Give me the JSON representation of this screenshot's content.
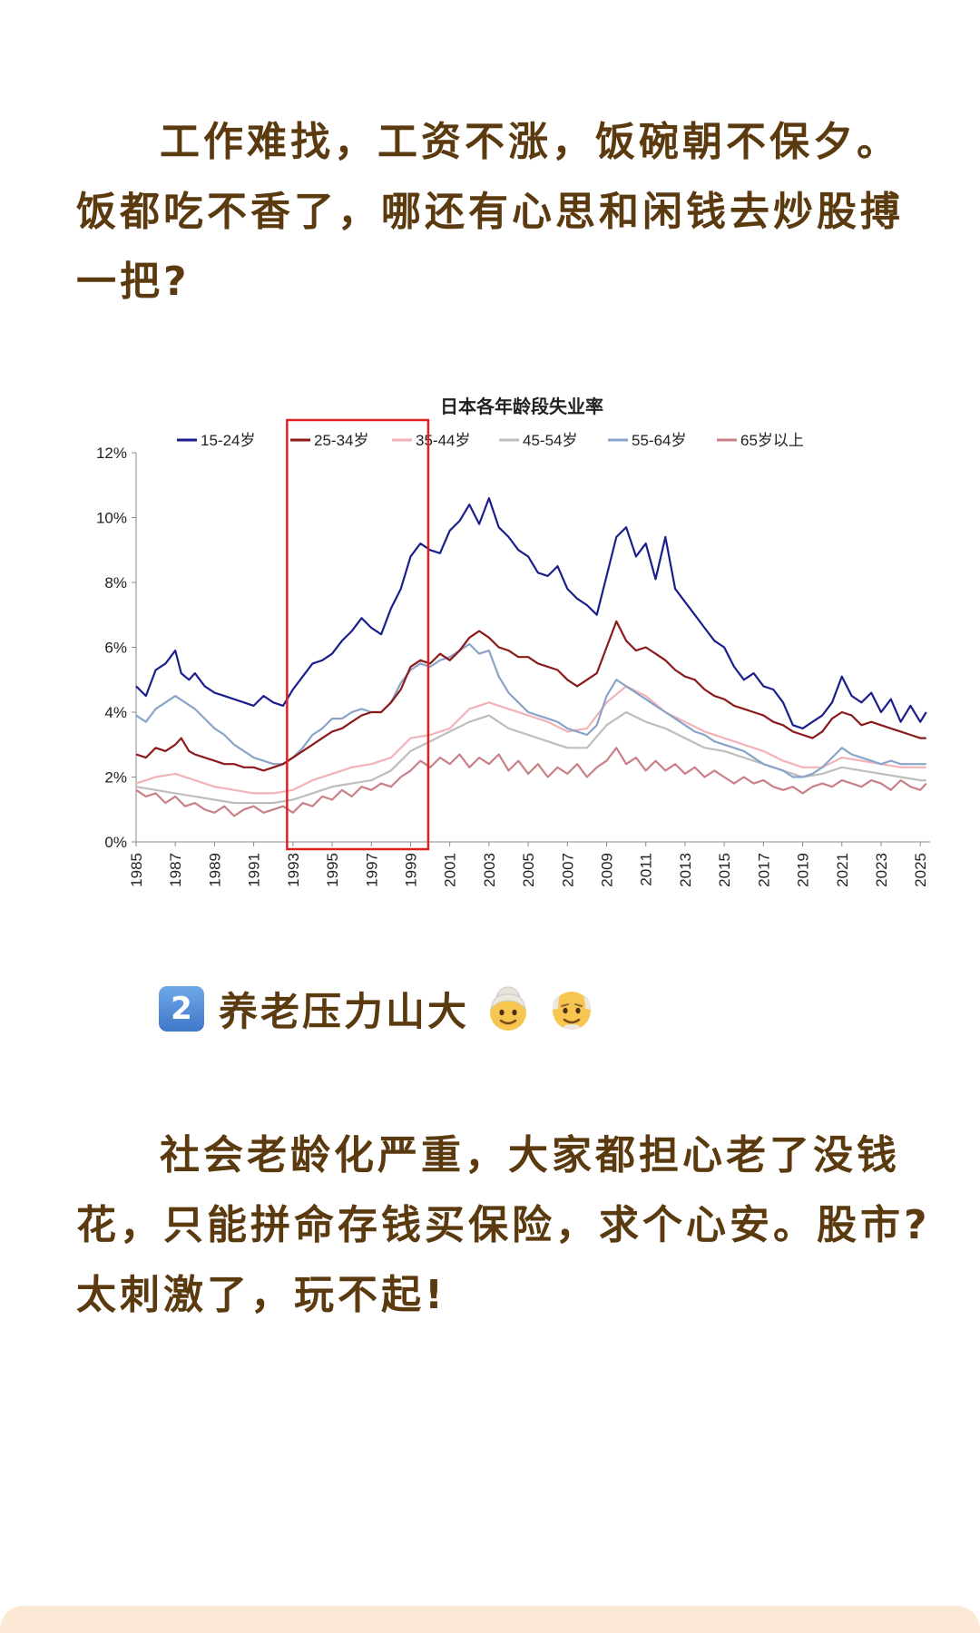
{
  "intro": {
    "paragraph": "工作难找，工资不涨，饭碗朝不保夕。饭都吃不香了，哪还有心思和闲钱去炒股搏一把?"
  },
  "chart_data": {
    "type": "line",
    "title": "日本各年龄段失业率",
    "xlabel": "",
    "ylabel": "",
    "ylim": [
      0,
      12
    ],
    "yticks": [
      "0%",
      "2%",
      "4%",
      "6%",
      "8%",
      "10%",
      "12%"
    ],
    "xticks": [
      "1985",
      "1987",
      "1989",
      "1991",
      "1993",
      "1995",
      "1997",
      "1999",
      "2001",
      "2003",
      "2005",
      "2007",
      "2009",
      "2011",
      "2013",
      "2015",
      "2017",
      "2019",
      "2021",
      "2023",
      "2025"
    ],
    "xlim": [
      1985,
      2025.5
    ],
    "legend_position": "top",
    "highlight": {
      "x_start": 1992.7,
      "x_end": 1999.9,
      "color": "#e02020"
    },
    "series": [
      {
        "name": "15-24岁",
        "color": "#1a1f8c",
        "x": [
          1985,
          1985.5,
          1986,
          1986.5,
          1987,
          1987.3,
          1987.7,
          1988,
          1988.5,
          1989,
          1989.5,
          1990,
          1990.5,
          1991,
          1991.5,
          1992,
          1992.5,
          1993,
          1993.5,
          1994,
          1994.5,
          1995,
          1995.5,
          1996,
          1996.5,
          1997,
          1997.5,
          1998,
          1998.5,
          1999,
          1999.5,
          2000,
          2000.5,
          2001,
          2001.5,
          2002,
          2002.5,
          2003,
          2003.5,
          2004,
          2004.5,
          2005,
          2005.5,
          2006,
          2006.5,
          2007,
          2007.5,
          2008,
          2008.5,
          2009,
          2009.5,
          2010,
          2010.5,
          2011,
          2011.5,
          2012,
          2012.5,
          2013,
          2013.5,
          2014,
          2014.5,
          2015,
          2015.5,
          2016,
          2016.5,
          2017,
          2017.5,
          2018,
          2018.5,
          2019,
          2019.5,
          2020,
          2020.5,
          2021,
          2021.5,
          2022,
          2022.5,
          2023,
          2023.5,
          2024,
          2024.5,
          2025,
          2025.3
        ],
        "values": [
          4.8,
          4.5,
          5.3,
          5.5,
          5.9,
          5.2,
          5.0,
          5.2,
          4.8,
          4.6,
          4.5,
          4.4,
          4.3,
          4.2,
          4.5,
          4.3,
          4.2,
          4.7,
          5.1,
          5.5,
          5.6,
          5.8,
          6.2,
          6.5,
          6.9,
          6.6,
          6.4,
          7.2,
          7.8,
          8.8,
          9.2,
          9.0,
          8.9,
          9.6,
          9.9,
          10.4,
          9.8,
          10.6,
          9.7,
          9.4,
          9.0,
          8.8,
          8.3,
          8.2,
          8.5,
          7.8,
          7.5,
          7.3,
          7.0,
          8.2,
          9.4,
          9.7,
          8.8,
          9.2,
          8.1,
          9.4,
          7.8,
          7.4,
          7.0,
          6.6,
          6.2,
          6.0,
          5.4,
          5.0,
          5.2,
          4.8,
          4.7,
          4.3,
          3.6,
          3.5,
          3.7,
          3.9,
          4.3,
          5.1,
          4.5,
          4.3,
          4.6,
          4.0,
          4.4,
          3.7,
          4.2,
          3.7,
          4.0
        ]
      },
      {
        "name": "25-34岁",
        "color": "#8b1a1a",
        "x": [
          1985,
          1985.5,
          1986,
          1986.5,
          1987,
          1987.3,
          1987.7,
          1988,
          1988.5,
          1989,
          1989.5,
          1990,
          1990.5,
          1991,
          1991.5,
          1992,
          1992.5,
          1993,
          1993.5,
          1994,
          1994.5,
          1995,
          1995.5,
          1996,
          1996.5,
          1997,
          1997.5,
          1998,
          1998.5,
          1999,
          1999.5,
          2000,
          2000.5,
          2001,
          2001.5,
          2002,
          2002.5,
          2003,
          2003.5,
          2004,
          2004.5,
          2005,
          2005.5,
          2006,
          2006.5,
          2007,
          2007.5,
          2008,
          2008.5,
          2009,
          2009.5,
          2010,
          2010.5,
          2011,
          2011.5,
          2012,
          2012.5,
          2013,
          2013.5,
          2014,
          2014.5,
          2015,
          2015.5,
          2016,
          2016.5,
          2017,
          2017.5,
          2018,
          2018.5,
          2019,
          2019.5,
          2020,
          2020.5,
          2021,
          2021.5,
          2022,
          2022.5,
          2023,
          2023.5,
          2024,
          2024.5,
          2025,
          2025.3
        ],
        "values": [
          2.7,
          2.6,
          2.9,
          2.8,
          3.0,
          3.2,
          2.8,
          2.7,
          2.6,
          2.5,
          2.4,
          2.4,
          2.3,
          2.3,
          2.2,
          2.3,
          2.4,
          2.6,
          2.8,
          3.0,
          3.2,
          3.4,
          3.5,
          3.7,
          3.9,
          4.0,
          4.0,
          4.3,
          4.7,
          5.4,
          5.6,
          5.5,
          5.8,
          5.6,
          5.9,
          6.3,
          6.5,
          6.3,
          6.0,
          5.9,
          5.7,
          5.7,
          5.5,
          5.4,
          5.3,
          5.0,
          4.8,
          5.0,
          5.2,
          6.0,
          6.8,
          6.2,
          5.9,
          6.0,
          5.8,
          5.6,
          5.3,
          5.1,
          5.0,
          4.7,
          4.5,
          4.4,
          4.2,
          4.1,
          4.0,
          3.9,
          3.7,
          3.6,
          3.4,
          3.3,
          3.2,
          3.4,
          3.8,
          4.0,
          3.9,
          3.6,
          3.7,
          3.6,
          3.5,
          3.4,
          3.3,
          3.2,
          3.2
        ]
      },
      {
        "name": "35-44岁",
        "color": "#f2b3b8",
        "x": [
          1985,
          1986,
          1987,
          1988,
          1989,
          1990,
          1991,
          1992,
          1993,
          1994,
          1995,
          1996,
          1997,
          1998,
          1999,
          2000,
          2001,
          2002,
          2003,
          2004,
          2005,
          2006,
          2007,
          2008,
          2009,
          2010,
          2011,
          2012,
          2013,
          2014,
          2015,
          2016,
          2017,
          2018,
          2019,
          2020,
          2021,
          2022,
          2023,
          2024,
          2025,
          2025.3
        ],
        "values": [
          1.8,
          2.0,
          2.1,
          1.9,
          1.7,
          1.6,
          1.5,
          1.5,
          1.6,
          1.9,
          2.1,
          2.3,
          2.4,
          2.6,
          3.2,
          3.3,
          3.5,
          4.1,
          4.3,
          4.1,
          3.9,
          3.7,
          3.4,
          3.5,
          4.3,
          4.8,
          4.5,
          4.0,
          3.7,
          3.4,
          3.2,
          3.0,
          2.8,
          2.5,
          2.3,
          2.3,
          2.6,
          2.5,
          2.4,
          2.3,
          2.3,
          2.3
        ]
      },
      {
        "name": "45-54岁",
        "color": "#bdbdbd",
        "x": [
          1985,
          1986,
          1987,
          1988,
          1989,
          1990,
          1991,
          1992,
          1993,
          1994,
          1995,
          1996,
          1997,
          1998,
          1999,
          2000,
          2001,
          2002,
          2003,
          2004,
          2005,
          2006,
          2007,
          2008,
          2009,
          2010,
          2011,
          2012,
          2013,
          2014,
          2015,
          2016,
          2017,
          2018,
          2019,
          2020,
          2021,
          2022,
          2023,
          2024,
          2025,
          2025.3
        ],
        "values": [
          1.7,
          1.6,
          1.5,
          1.4,
          1.3,
          1.2,
          1.2,
          1.2,
          1.3,
          1.5,
          1.7,
          1.8,
          1.9,
          2.2,
          2.8,
          3.1,
          3.4,
          3.7,
          3.9,
          3.5,
          3.3,
          3.1,
          2.9,
          2.9,
          3.6,
          4.0,
          3.7,
          3.5,
          3.2,
          2.9,
          2.8,
          2.6,
          2.4,
          2.2,
          2.0,
          2.1,
          2.3,
          2.2,
          2.1,
          2.0,
          1.9,
          1.9
        ]
      },
      {
        "name": "55-64岁",
        "color": "#8aa3c8",
        "x": [
          1985,
          1985.5,
          1986,
          1986.5,
          1987,
          1987.5,
          1988,
          1988.5,
          1989,
          1989.5,
          1990,
          1990.5,
          1991,
          1991.5,
          1992,
          1992.5,
          1993,
          1993.5,
          1994,
          1994.5,
          1995,
          1995.5,
          1996,
          1996.5,
          1997,
          1997.5,
          1998,
          1998.5,
          1999,
          1999.5,
          2000,
          2000.5,
          2001,
          2001.5,
          2002,
          2002.5,
          2003,
          2003.5,
          2004,
          2004.5,
          2005,
          2005.5,
          2006,
          2006.5,
          2007,
          2007.5,
          2008,
          2008.5,
          2009,
          2009.5,
          2010,
          2010.5,
          2011,
          2011.5,
          2012,
          2012.5,
          2013,
          2013.5,
          2014,
          2014.5,
          2015,
          2015.5,
          2016,
          2016.5,
          2017,
          2017.5,
          2018,
          2018.5,
          2019,
          2019.5,
          2020,
          2020.5,
          2021,
          2021.5,
          2022,
          2022.5,
          2023,
          2023.5,
          2024,
          2024.5,
          2025,
          2025.3
        ],
        "values": [
          3.9,
          3.7,
          4.1,
          4.3,
          4.5,
          4.3,
          4.1,
          3.8,
          3.5,
          3.3,
          3.0,
          2.8,
          2.6,
          2.5,
          2.4,
          2.4,
          2.6,
          2.9,
          3.3,
          3.5,
          3.8,
          3.8,
          4.0,
          4.1,
          4.0,
          4.0,
          4.3,
          4.9,
          5.3,
          5.5,
          5.4,
          5.6,
          5.7,
          5.9,
          6.1,
          5.8,
          5.9,
          5.1,
          4.6,
          4.3,
          4.0,
          3.9,
          3.8,
          3.7,
          3.5,
          3.4,
          3.3,
          3.6,
          4.5,
          5.0,
          4.8,
          4.6,
          4.4,
          4.2,
          4.0,
          3.8,
          3.6,
          3.4,
          3.3,
          3.1,
          3.0,
          2.9,
          2.8,
          2.6,
          2.4,
          2.3,
          2.2,
          2.0,
          2.0,
          2.1,
          2.3,
          2.6,
          2.9,
          2.7,
          2.6,
          2.5,
          2.4,
          2.5,
          2.4,
          2.4,
          2.4,
          2.4
        ]
      },
      {
        "name": "65岁以上",
        "color": "#c98086",
        "x": [
          1985,
          1985.5,
          1986,
          1986.5,
          1987,
          1987.5,
          1988,
          1988.5,
          1989,
          1989.5,
          1990,
          1990.5,
          1991,
          1991.5,
          1992,
          1992.5,
          1993,
          1993.5,
          1994,
          1994.5,
          1995,
          1995.5,
          1996,
          1996.5,
          1997,
          1997.5,
          1998,
          1998.5,
          1999,
          1999.5,
          2000,
          2000.5,
          2001,
          2001.5,
          2002,
          2002.5,
          2003,
          2003.5,
          2004,
          2004.5,
          2005,
          2005.5,
          2006,
          2006.5,
          2007,
          2007.5,
          2008,
          2008.5,
          2009,
          2009.5,
          2010,
          2010.5,
          2011,
          2011.5,
          2012,
          2012.5,
          2013,
          2013.5,
          2014,
          2014.5,
          2015,
          2015.5,
          2016,
          2016.5,
          2017,
          2017.5,
          2018,
          2018.5,
          2019,
          2019.5,
          2020,
          2020.5,
          2021,
          2021.5,
          2022,
          2022.5,
          2023,
          2023.5,
          2024,
          2024.5,
          2025,
          2025.3
        ],
        "values": [
          1.6,
          1.4,
          1.5,
          1.2,
          1.4,
          1.1,
          1.2,
          1.0,
          0.9,
          1.1,
          0.8,
          1.0,
          1.1,
          0.9,
          1.0,
          1.1,
          0.9,
          1.2,
          1.1,
          1.4,
          1.3,
          1.6,
          1.4,
          1.7,
          1.6,
          1.8,
          1.7,
          2.0,
          2.2,
          2.5,
          2.3,
          2.6,
          2.4,
          2.7,
          2.3,
          2.6,
          2.4,
          2.7,
          2.2,
          2.5,
          2.1,
          2.4,
          2.0,
          2.3,
          2.1,
          2.4,
          2.0,
          2.3,
          2.5,
          2.9,
          2.4,
          2.6,
          2.2,
          2.5,
          2.2,
          2.4,
          2.1,
          2.3,
          2.0,
          2.2,
          2.0,
          1.8,
          2.0,
          1.8,
          1.9,
          1.7,
          1.6,
          1.7,
          1.5,
          1.7,
          1.8,
          1.7,
          1.9,
          1.8,
          1.7,
          1.9,
          1.8,
          1.6,
          1.9,
          1.7,
          1.6,
          1.8
        ]
      }
    ]
  },
  "section2": {
    "number": "2",
    "heading": "养老压力山大",
    "icons": [
      "older-woman-emoji-icon",
      "older-man-emoji-icon"
    ],
    "paragraph": "社会老龄化严重，大家都担心老了没钱花，只能拼命存钱买保险，求个心安。股市?太刺激了，玩不起!"
  }
}
